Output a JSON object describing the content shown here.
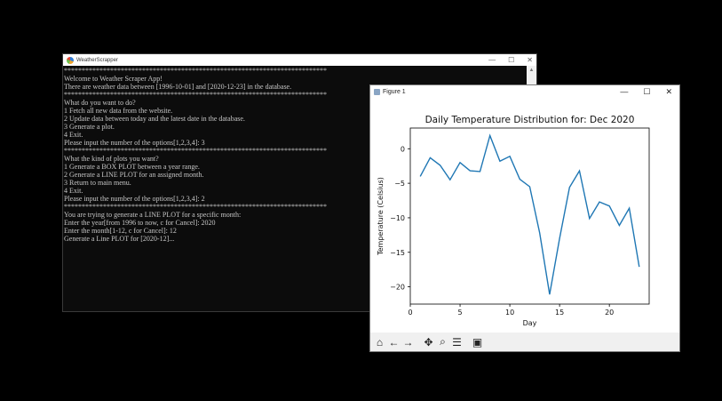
{
  "console": {
    "title": "WeatherScrapper",
    "controls": {
      "minimize": "—",
      "maximize": "☐",
      "close": "✕"
    },
    "lines": [
      "**************************************************************************",
      "Welcome to Weather Scraper App!",
      "There are weather data between [1996-10-01] and [2020-12-23] in the database.",
      "**************************************************************************",
      "What do you want to do?",
      "1 Fetch all new data from the website.",
      "2 Update data between today and the latest date in the database.",
      "3 Generate a plot.",
      "4 Exit.",
      "Please input the number of the options[1,2,3,4]: 3",
      "**************************************************************************",
      "What the kind of plots you want?",
      "1 Generate a BOX PLOT between a year range.",
      "2 Generate a LINE PLOT for an assigned month.",
      "3 Return to main menu.",
      "4 Exit.",
      "Please input the number of the options[1,2,3,4]: 2",
      "**************************************************************************",
      "You are trying to generate a LINE PLOT for a specific month:",
      "Enter the year[from 1996 to now, c for Cancel]: 2020",
      "Enter the month[1-12, c for Cancel]: 12",
      "Generate a Line PLOT for [2020-12]..."
    ]
  },
  "figure": {
    "title": "Figure 1",
    "controls": {
      "minimize": "—",
      "maximize": "☐",
      "close": "✕"
    },
    "toolbar": [
      {
        "name": "home-icon",
        "glyph": "⌂"
      },
      {
        "name": "back-arrow-icon",
        "glyph": "←"
      },
      {
        "name": "forward-arrow-icon",
        "glyph": "→"
      },
      {
        "name": "pan-icon",
        "glyph": "✥"
      },
      {
        "name": "zoom-icon",
        "glyph": "⌕"
      },
      {
        "name": "configure-subplots-icon",
        "glyph": "☰"
      },
      {
        "name": "save-icon",
        "glyph": "▣"
      }
    ]
  },
  "chart_data": {
    "type": "line",
    "title": "Daily Temperature Distribution for: Dec 2020",
    "xlabel": "Day",
    "ylabel": "Temperature (Celsius)",
    "xlim": [
      0,
      24
    ],
    "ylim": [
      -22.5,
      3
    ],
    "xticks": [
      0,
      5,
      10,
      15,
      20
    ],
    "yticks": [
      0,
      -5,
      -10,
      -15,
      -20
    ],
    "color": "#1f77b4",
    "x": [
      1,
      2,
      3,
      4,
      5,
      6,
      7,
      8,
      9,
      10,
      11,
      12,
      13,
      14,
      15,
      16,
      17,
      18,
      19,
      20,
      21,
      22,
      23
    ],
    "y": [
      -4.0,
      -1.3,
      -2.4,
      -4.5,
      -2.0,
      -3.2,
      -3.3,
      1.9,
      -1.8,
      -1.1,
      -4.4,
      -5.5,
      -12.2,
      -21.1,
      -13.0,
      -5.6,
      -3.2,
      -10.1,
      -7.7,
      -8.3,
      -11.1,
      -8.6,
      -17.1
    ]
  }
}
